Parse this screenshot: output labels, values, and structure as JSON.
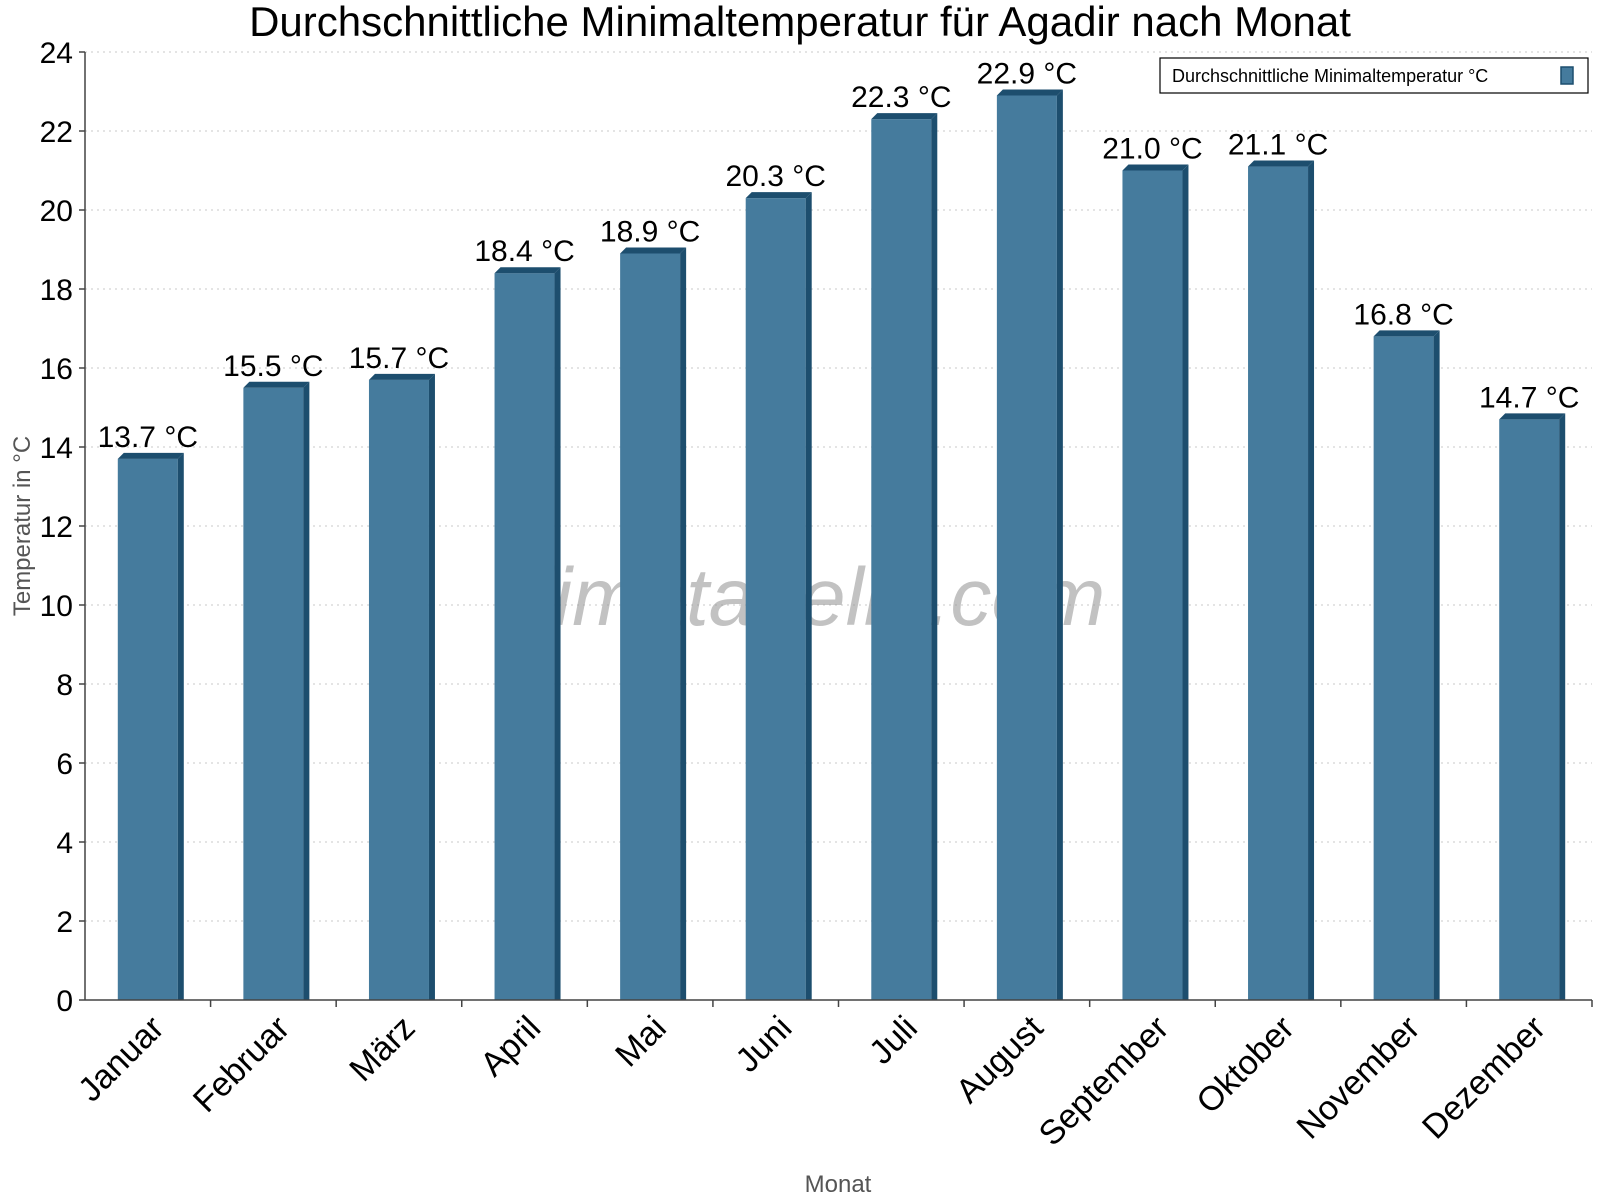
{
  "chart_data": {
    "type": "bar",
    "title": "Durchschnittliche Minimaltemperatur für Agadir nach Monat",
    "xlabel": "Monat",
    "ylabel": "Temperatur in °C",
    "categories": [
      "Januar",
      "Februar",
      "März",
      "April",
      "Mai",
      "Juni",
      "Juli",
      "August",
      "September",
      "Oktober",
      "November",
      "Dezember"
    ],
    "series": [
      {
        "name": "Durchschnittliche Minimaltemperatur °C",
        "values": [
          13.7,
          15.5,
          15.7,
          18.4,
          18.9,
          20.3,
          22.3,
          22.9,
          21.0,
          21.1,
          16.8,
          14.7
        ],
        "data_labels": [
          "13.7 °C",
          "15.5 °C",
          "15.7 °C",
          "18.4 °C",
          "18.9 °C",
          "20.3 °C",
          "22.3 °C",
          "22.9 °C",
          "21.0 °C",
          "21.1 °C",
          "16.8 °C",
          "14.7 °C"
        ],
        "color": "#457b9d",
        "edge_color": "#1d4e6e"
      }
    ],
    "ylim": [
      0,
      24
    ],
    "yticks": [
      0,
      2,
      4,
      6,
      8,
      10,
      12,
      14,
      16,
      18,
      20,
      22,
      24
    ],
    "grid": true,
    "legend_position": "top-right",
    "watermark": "klimatabelle.com"
  }
}
